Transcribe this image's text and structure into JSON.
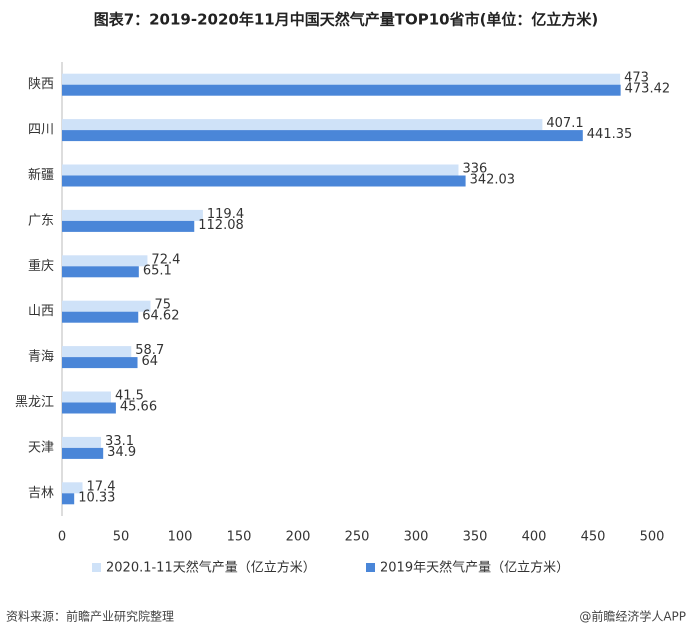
{
  "chart_data": {
    "type": "hbar",
    "title": "图表7：2019-2020年11月中国天然气产量TOP10省市(单位：亿立方米)",
    "categories": [
      "陕西",
      "四川",
      "新疆",
      "广东",
      "重庆",
      "山西",
      "青海",
      "黑龙江",
      "天津",
      "吉林"
    ],
    "series": [
      {
        "name": "2020.1-11天然气产量（亿立方米）",
        "color": "#cfe2f8",
        "values": [
          473,
          407.1,
          336,
          119.4,
          72.4,
          75,
          58.7,
          41.5,
          33.1,
          17.4
        ]
      },
      {
        "name": "2019年天然气产量（亿立方米）",
        "color": "#4a86d8",
        "values": [
          473.42,
          441.35,
          342.03,
          112.08,
          65.1,
          64.62,
          64,
          45.66,
          34.9,
          10.33
        ]
      }
    ],
    "xlim": [
      0,
      500
    ],
    "xticks": [
      0,
      50,
      100,
      150,
      200,
      250,
      300,
      350,
      400,
      450,
      500
    ],
    "grid": false,
    "legend": "bottom",
    "source": "资料来源：前瞻产业研究院整理",
    "credit": "@前瞻经济学人APP"
  }
}
